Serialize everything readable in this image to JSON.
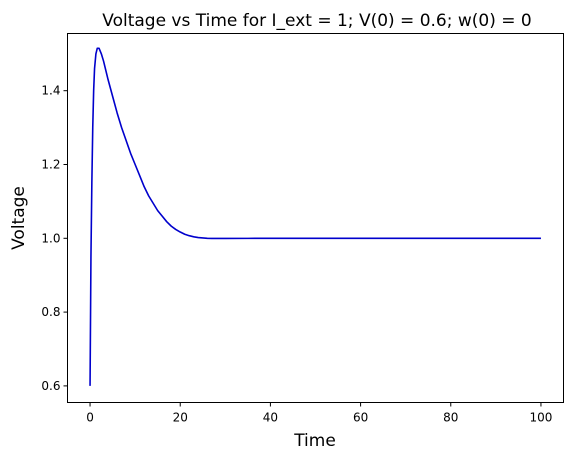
{
  "chart_data": {
    "type": "line",
    "title": "Voltage vs Time for I_ext = 1; V(0) = 0.6; w(0) = 0",
    "xlabel": "Time",
    "ylabel": "Voltage",
    "xlim": [
      -5,
      105
    ],
    "ylim": [
      0.555,
      1.555
    ],
    "xticks": [
      0,
      20,
      40,
      60,
      80,
      100
    ],
    "yticks": [
      0.6,
      0.8,
      1.0,
      1.2,
      1.4
    ],
    "xtick_labels": [
      "0",
      "20",
      "40",
      "60",
      "80",
      "100"
    ],
    "ytick_labels": [
      "0.6",
      "0.8",
      "1.0",
      "1.2",
      "1.4"
    ],
    "grid": false,
    "series": [
      {
        "color": "#0000cc",
        "x": [
          0,
          0.2,
          0.4,
          0.6,
          0.8,
          1.0,
          1.3,
          1.6,
          2.0,
          2.5,
          3,
          4,
          5,
          6,
          7,
          8,
          9,
          10,
          11,
          12,
          13,
          14,
          15,
          16,
          17,
          18,
          19,
          20,
          21,
          22,
          23,
          24,
          25,
          26,
          27,
          28,
          29,
          30,
          35,
          40,
          45,
          50,
          60,
          70,
          80,
          90,
          100
        ],
        "y": [
          0.6,
          0.95,
          1.15,
          1.3,
          1.4,
          1.46,
          1.5,
          1.515,
          1.515,
          1.5,
          1.48,
          1.43,
          1.385,
          1.34,
          1.3,
          1.265,
          1.23,
          1.2,
          1.17,
          1.14,
          1.115,
          1.095,
          1.075,
          1.06,
          1.045,
          1.033,
          1.024,
          1.017,
          1.011,
          1.007,
          1.004,
          1.002,
          1.001,
          1.0,
          0.9995,
          0.9995,
          0.9995,
          0.9995,
          0.9998,
          1.0,
          1.0,
          1.0,
          1.0,
          1.0,
          1.0,
          1.0,
          1.0
        ]
      }
    ]
  }
}
